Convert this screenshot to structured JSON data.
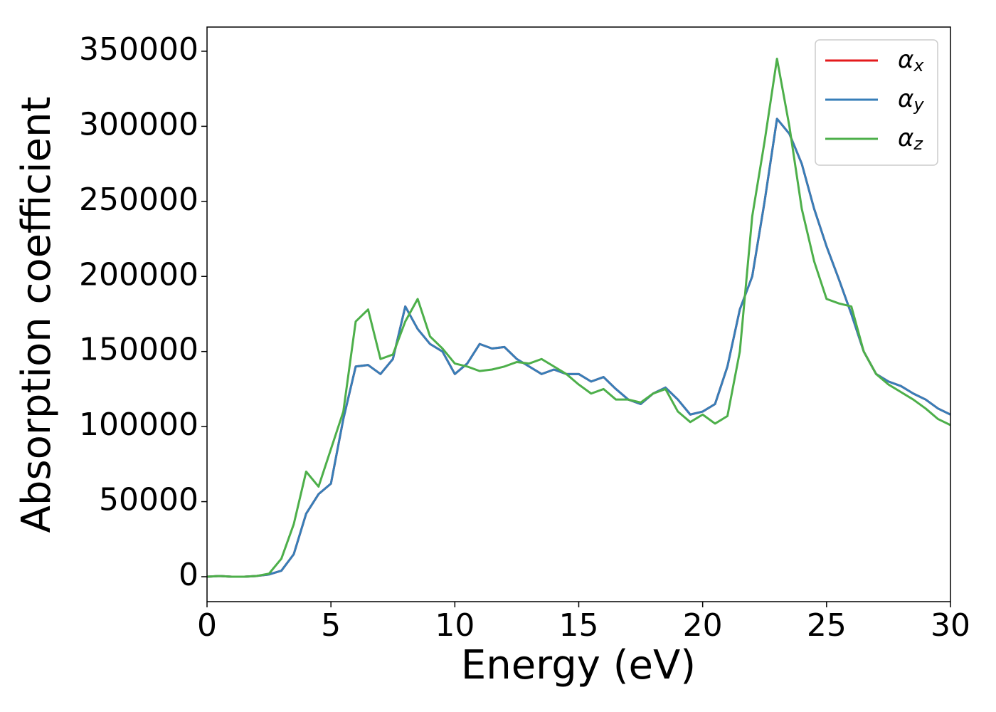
{
  "chart_data": {
    "type": "line",
    "xlabel": "Energy (eV)",
    "ylabel": "Absorption coefficient",
    "x": [
      0,
      0.5,
      1,
      1.5,
      2,
      2.5,
      3,
      3.5,
      4,
      4.5,
      5,
      5.5,
      6,
      6.5,
      7,
      7.5,
      8,
      8.5,
      9,
      9.5,
      10,
      10.5,
      11,
      11.5,
      12,
      12.5,
      13,
      13.5,
      14,
      14.5,
      15,
      15.5,
      16,
      16.5,
      17,
      17.5,
      18,
      18.5,
      19,
      19.5,
      20,
      20.5,
      21,
      21.5,
      22,
      22.5,
      23,
      23.5,
      24,
      24.5,
      25,
      25.5,
      26,
      26.5,
      27,
      27.5,
      28,
      28.5,
      29,
      29.5,
      30
    ],
    "series": [
      {
        "name": "αx",
        "color": "#e41a1c",
        "values": [
          0,
          500,
          0,
          0,
          500,
          1500,
          4000,
          15000,
          42000,
          55000,
          62000,
          105000,
          140000,
          141000,
          135000,
          145000,
          180000,
          165000,
          155000,
          150000,
          135000,
          142000,
          155000,
          152000,
          153000,
          145000,
          140000,
          135000,
          138000,
          135000,
          135000,
          130000,
          133000,
          125000,
          118000,
          115000,
          122000,
          126000,
          118000,
          108000,
          110000,
          115000,
          140000,
          178000,
          200000,
          250000,
          305000,
          295000,
          275000,
          245000,
          220000,
          198000,
          175000,
          150000,
          135000,
          130000,
          127000,
          122000,
          118000,
          112000,
          108000
        ]
      },
      {
        "name": "αy",
        "color": "#377eb8",
        "values": [
          0,
          500,
          0,
          0,
          500,
          1500,
          4000,
          15000,
          42000,
          55000,
          62000,
          105000,
          140000,
          141000,
          135000,
          145000,
          180000,
          165000,
          155000,
          150000,
          135000,
          142000,
          155000,
          152000,
          153000,
          145000,
          140000,
          135000,
          138000,
          135000,
          135000,
          130000,
          133000,
          125000,
          118000,
          115000,
          122000,
          126000,
          118000,
          108000,
          110000,
          115000,
          140000,
          178000,
          200000,
          250000,
          305000,
          295000,
          275000,
          245000,
          220000,
          198000,
          175000,
          150000,
          135000,
          130000,
          127000,
          122000,
          118000,
          112000,
          108000
        ]
      },
      {
        "name": "αz",
        "color": "#4daf4a",
        "values": [
          0,
          500,
          0,
          0,
          500,
          2000,
          12000,
          35000,
          70000,
          60000,
          85000,
          110000,
          170000,
          178000,
          145000,
          148000,
          170000,
          185000,
          160000,
          152000,
          142000,
          140000,
          137000,
          138000,
          140000,
          143000,
          142000,
          145000,
          140000,
          135000,
          128000,
          122000,
          125000,
          118000,
          118000,
          116000,
          122000,
          125000,
          110000,
          103000,
          108000,
          102000,
          107000,
          150000,
          240000,
          290000,
          345000,
          300000,
          245000,
          210000,
          185000,
          182000,
          180000,
          150000,
          135000,
          128000,
          123000,
          118000,
          112000,
          105000,
          101000
        ]
      }
    ],
    "xlim": [
      0,
      30
    ],
    "ylim": [
      -16600,
      366100
    ],
    "xticks": [
      0,
      5,
      10,
      15,
      20,
      25,
      30
    ],
    "yticks": [
      0,
      50000,
      100000,
      150000,
      200000,
      250000,
      300000,
      350000
    ],
    "grid": false,
    "legend": "upper right"
  }
}
